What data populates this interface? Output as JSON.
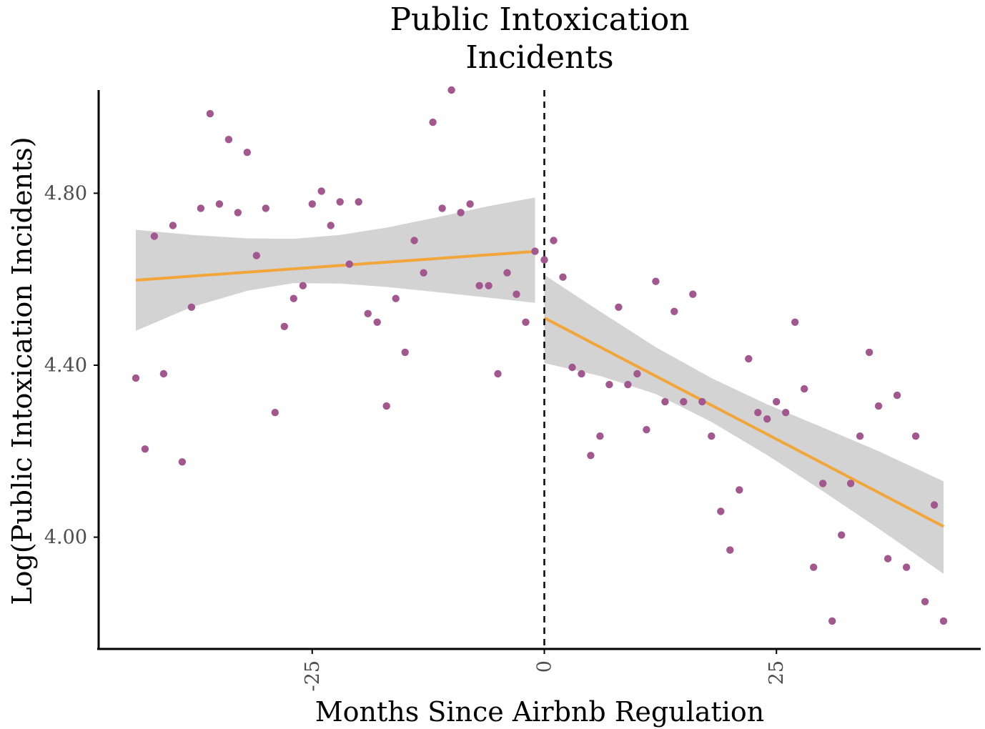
{
  "chart_data": {
    "type": "scatter",
    "title_lines": [
      "Public Intoxication",
      "Incidents"
    ],
    "xlabel": "Months Since Airbnb Regulation",
    "ylabel": "Log(Public Intoxication Incidents)",
    "xlim": [
      -48,
      47
    ],
    "ylim": [
      3.74,
      5.04
    ],
    "x_ticks": [
      {
        "value": -25,
        "label": "-25"
      },
      {
        "value": 0,
        "label": "0"
      },
      {
        "value": 25,
        "label": "25"
      }
    ],
    "y_ticks": [
      {
        "value": 4.0,
        "label": "4.00"
      },
      {
        "value": 4.4,
        "label": "4.40"
      },
      {
        "value": 4.8,
        "label": "4.80"
      }
    ],
    "cutoff_x": 0,
    "colors": {
      "points": "#a3578f",
      "fit_line": "#f2a63a",
      "ribbon": "#d3d3d3",
      "axis": "#000000"
    },
    "points": [
      {
        "x": -44,
        "y": 4.37
      },
      {
        "x": -43,
        "y": 4.205
      },
      {
        "x": -42,
        "y": 4.7
      },
      {
        "x": -41,
        "y": 4.38
      },
      {
        "x": -40,
        "y": 4.725
      },
      {
        "x": -39,
        "y": 4.175
      },
      {
        "x": -38,
        "y": 4.535
      },
      {
        "x": -37,
        "y": 4.765
      },
      {
        "x": -36,
        "y": 4.985
      },
      {
        "x": -35,
        "y": 4.775
      },
      {
        "x": -34,
        "y": 4.925
      },
      {
        "x": -33,
        "y": 4.755
      },
      {
        "x": -32,
        "y": 4.895
      },
      {
        "x": -31,
        "y": 4.655
      },
      {
        "x": -30,
        "y": 4.765
      },
      {
        "x": -29,
        "y": 4.29
      },
      {
        "x": -28,
        "y": 4.49
      },
      {
        "x": -27,
        "y": 4.555
      },
      {
        "x": -26,
        "y": 4.585
      },
      {
        "x": -25,
        "y": 4.775
      },
      {
        "x": -24,
        "y": 4.805
      },
      {
        "x": -23,
        "y": 4.725
      },
      {
        "x": -22,
        "y": 4.78
      },
      {
        "x": -21,
        "y": 4.635
      },
      {
        "x": -20,
        "y": 4.78
      },
      {
        "x": -19,
        "y": 4.52
      },
      {
        "x": -18,
        "y": 4.5
      },
      {
        "x": -17,
        "y": 4.305
      },
      {
        "x": -16,
        "y": 4.555
      },
      {
        "x": -15,
        "y": 4.43
      },
      {
        "x": -14,
        "y": 4.69
      },
      {
        "x": -13,
        "y": 4.615
      },
      {
        "x": -12,
        "y": 4.965
      },
      {
        "x": -11,
        "y": 4.765
      },
      {
        "x": -10,
        "y": 5.04
      },
      {
        "x": -9,
        "y": 4.755
      },
      {
        "x": -8,
        "y": 4.775
      },
      {
        "x": -7,
        "y": 4.585
      },
      {
        "x": -6,
        "y": 4.585
      },
      {
        "x": -5,
        "y": 4.38
      },
      {
        "x": -4,
        "y": 4.615
      },
      {
        "x": -3,
        "y": 4.565
      },
      {
        "x": -2,
        "y": 4.5
      },
      {
        "x": -1,
        "y": 4.665
      },
      {
        "x": 0,
        "y": 4.645
      },
      {
        "x": 1,
        "y": 4.69
      },
      {
        "x": 2,
        "y": 4.605
      },
      {
        "x": 3,
        "y": 4.395
      },
      {
        "x": 4,
        "y": 4.38
      },
      {
        "x": 5,
        "y": 4.19
      },
      {
        "x": 6,
        "y": 4.235
      },
      {
        "x": 7,
        "y": 4.355
      },
      {
        "x": 8,
        "y": 4.535
      },
      {
        "x": 9,
        "y": 4.355
      },
      {
        "x": 10,
        "y": 4.38
      },
      {
        "x": 11,
        "y": 4.25
      },
      {
        "x": 12,
        "y": 4.595
      },
      {
        "x": 13,
        "y": 4.315
      },
      {
        "x": 14,
        "y": 4.525
      },
      {
        "x": 15,
        "y": 4.315
      },
      {
        "x": 16,
        "y": 4.565
      },
      {
        "x": 17,
        "y": 4.315
      },
      {
        "x": 18,
        "y": 4.235
      },
      {
        "x": 19,
        "y": 4.06
      },
      {
        "x": 20,
        "y": 3.97
      },
      {
        "x": 21,
        "y": 4.11
      },
      {
        "x": 22,
        "y": 4.415
      },
      {
        "x": 23,
        "y": 4.29
      },
      {
        "x": 24,
        "y": 4.275
      },
      {
        "x": 25,
        "y": 4.315
      },
      {
        "x": 26,
        "y": 4.29
      },
      {
        "x": 27,
        "y": 4.5
      },
      {
        "x": 28,
        "y": 4.345
      },
      {
        "x": 29,
        "y": 3.93
      },
      {
        "x": 30,
        "y": 4.125
      },
      {
        "x": 31,
        "y": 3.805
      },
      {
        "x": 32,
        "y": 4.005
      },
      {
        "x": 33,
        "y": 4.125
      },
      {
        "x": 34,
        "y": 4.235
      },
      {
        "x": 35,
        "y": 4.43
      },
      {
        "x": 36,
        "y": 4.305
      },
      {
        "x": 37,
        "y": 3.95
      },
      {
        "x": 38,
        "y": 4.33
      },
      {
        "x": 39,
        "y": 3.93
      },
      {
        "x": 40,
        "y": 4.235
      },
      {
        "x": 41,
        "y": 3.85
      },
      {
        "x": 42,
        "y": 4.075
      },
      {
        "x": 43,
        "y": 3.805
      }
    ],
    "fits": [
      {
        "segment": "pre",
        "x_range": [
          -44,
          -1
        ],
        "intercept": 4.666,
        "slope": 0.00155,
        "ribbon": [
          {
            "x": -44,
            "lo": 4.48,
            "hi": 4.715
          },
          {
            "x": -38,
            "lo": 4.535,
            "hi": 4.703
          },
          {
            "x": -32,
            "lo": 4.573,
            "hi": 4.695
          },
          {
            "x": -27,
            "lo": 4.591,
            "hi": 4.694
          },
          {
            "x": -22,
            "lo": 4.59,
            "hi": 4.703
          },
          {
            "x": -17,
            "lo": 4.582,
            "hi": 4.72
          },
          {
            "x": -12,
            "lo": 4.571,
            "hi": 4.742
          },
          {
            "x": -6,
            "lo": 4.557,
            "hi": 4.77
          },
          {
            "x": -1,
            "lo": 4.545,
            "hi": 4.79
          }
        ]
      },
      {
        "segment": "post",
        "x_range": [
          0,
          43
        ],
        "intercept": 4.51,
        "slope": -0.01128,
        "ribbon": [
          {
            "x": 0,
            "lo": 4.405,
            "hi": 4.61
          },
          {
            "x": 6,
            "lo": 4.375,
            "hi": 4.525
          },
          {
            "x": 12,
            "lo": 4.333,
            "hi": 4.442
          },
          {
            "x": 18,
            "lo": 4.268,
            "hi": 4.37
          },
          {
            "x": 24,
            "lo": 4.191,
            "hi": 4.309
          },
          {
            "x": 30,
            "lo": 4.107,
            "hi": 4.255
          },
          {
            "x": 36,
            "lo": 4.02,
            "hi": 4.2
          },
          {
            "x": 43,
            "lo": 3.915,
            "hi": 4.13
          }
        ]
      }
    ]
  }
}
